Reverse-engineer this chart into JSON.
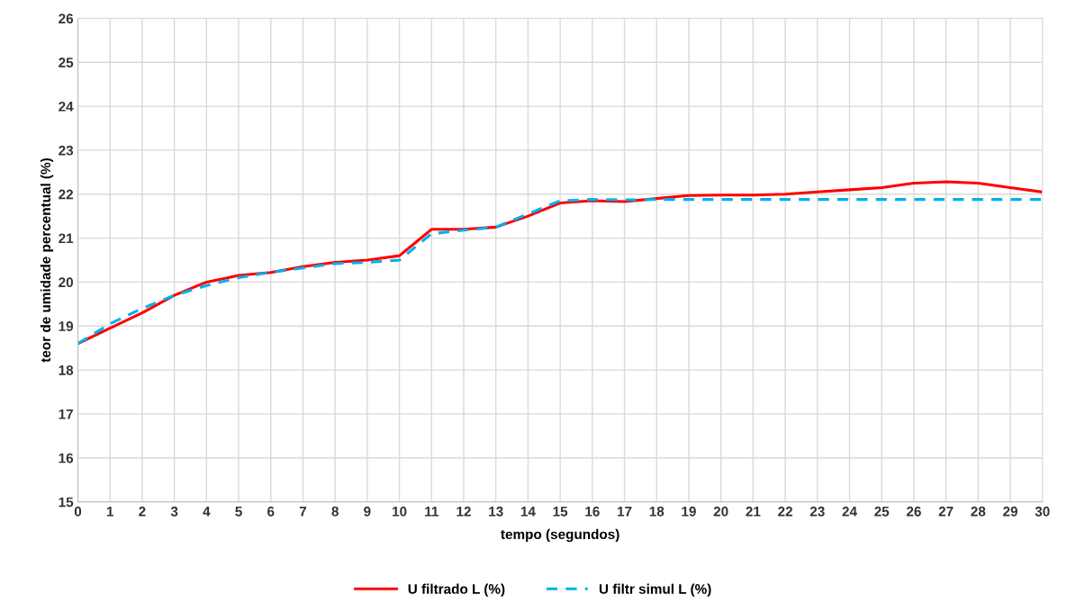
{
  "chart_data": {
    "type": "line",
    "xlabel": "tempo (segundos)",
    "ylabel": "teor de umidade percentual (%)",
    "x": [
      0,
      1,
      2,
      3,
      4,
      5,
      6,
      7,
      8,
      9,
      10,
      10.5,
      11,
      12,
      13,
      14,
      15,
      16,
      17,
      18,
      19,
      20,
      21,
      22,
      23,
      24,
      25,
      26,
      27,
      28,
      29,
      30
    ],
    "series": [
      {
        "name": "U filtrado L (%)",
        "color": "#ff0000",
        "line_style": "solid",
        "values": [
          18.6,
          18.95,
          19.3,
          19.7,
          20.0,
          20.15,
          20.22,
          20.35,
          20.45,
          20.5,
          20.6,
          20.9,
          21.2,
          21.2,
          21.25,
          21.5,
          21.8,
          21.85,
          21.83,
          21.9,
          21.97,
          21.98,
          21.98,
          22.0,
          22.05,
          22.1,
          22.15,
          22.25,
          22.28,
          22.25,
          22.15,
          22.05
        ]
      },
      {
        "name": "U filtr simul L (%)",
        "color": "#00b0f0",
        "line_style": "dashed",
        "values": [
          18.6,
          19.05,
          19.4,
          19.7,
          19.92,
          20.1,
          20.22,
          20.32,
          20.42,
          20.45,
          20.5,
          20.8,
          21.1,
          21.18,
          21.25,
          21.55,
          21.85,
          21.88,
          21.87,
          21.88,
          21.88,
          21.88,
          21.88,
          21.88,
          21.88,
          21.88,
          21.88,
          21.88,
          21.88,
          21.88,
          21.88,
          21.88
        ]
      }
    ],
    "xlim": [
      0,
      30
    ],
    "xticks": [
      0,
      1,
      2,
      3,
      4,
      5,
      6,
      7,
      8,
      9,
      10,
      11,
      12,
      13,
      14,
      15,
      16,
      17,
      18,
      19,
      20,
      21,
      22,
      23,
      24,
      25,
      26,
      27,
      28,
      29,
      30
    ],
    "ylim": [
      15,
      26
    ],
    "yticks": [
      15,
      16,
      17,
      18,
      19,
      20,
      21,
      22,
      23,
      24,
      25,
      26
    ],
    "grid": true,
    "legend": "bottom",
    "marker": "none"
  }
}
